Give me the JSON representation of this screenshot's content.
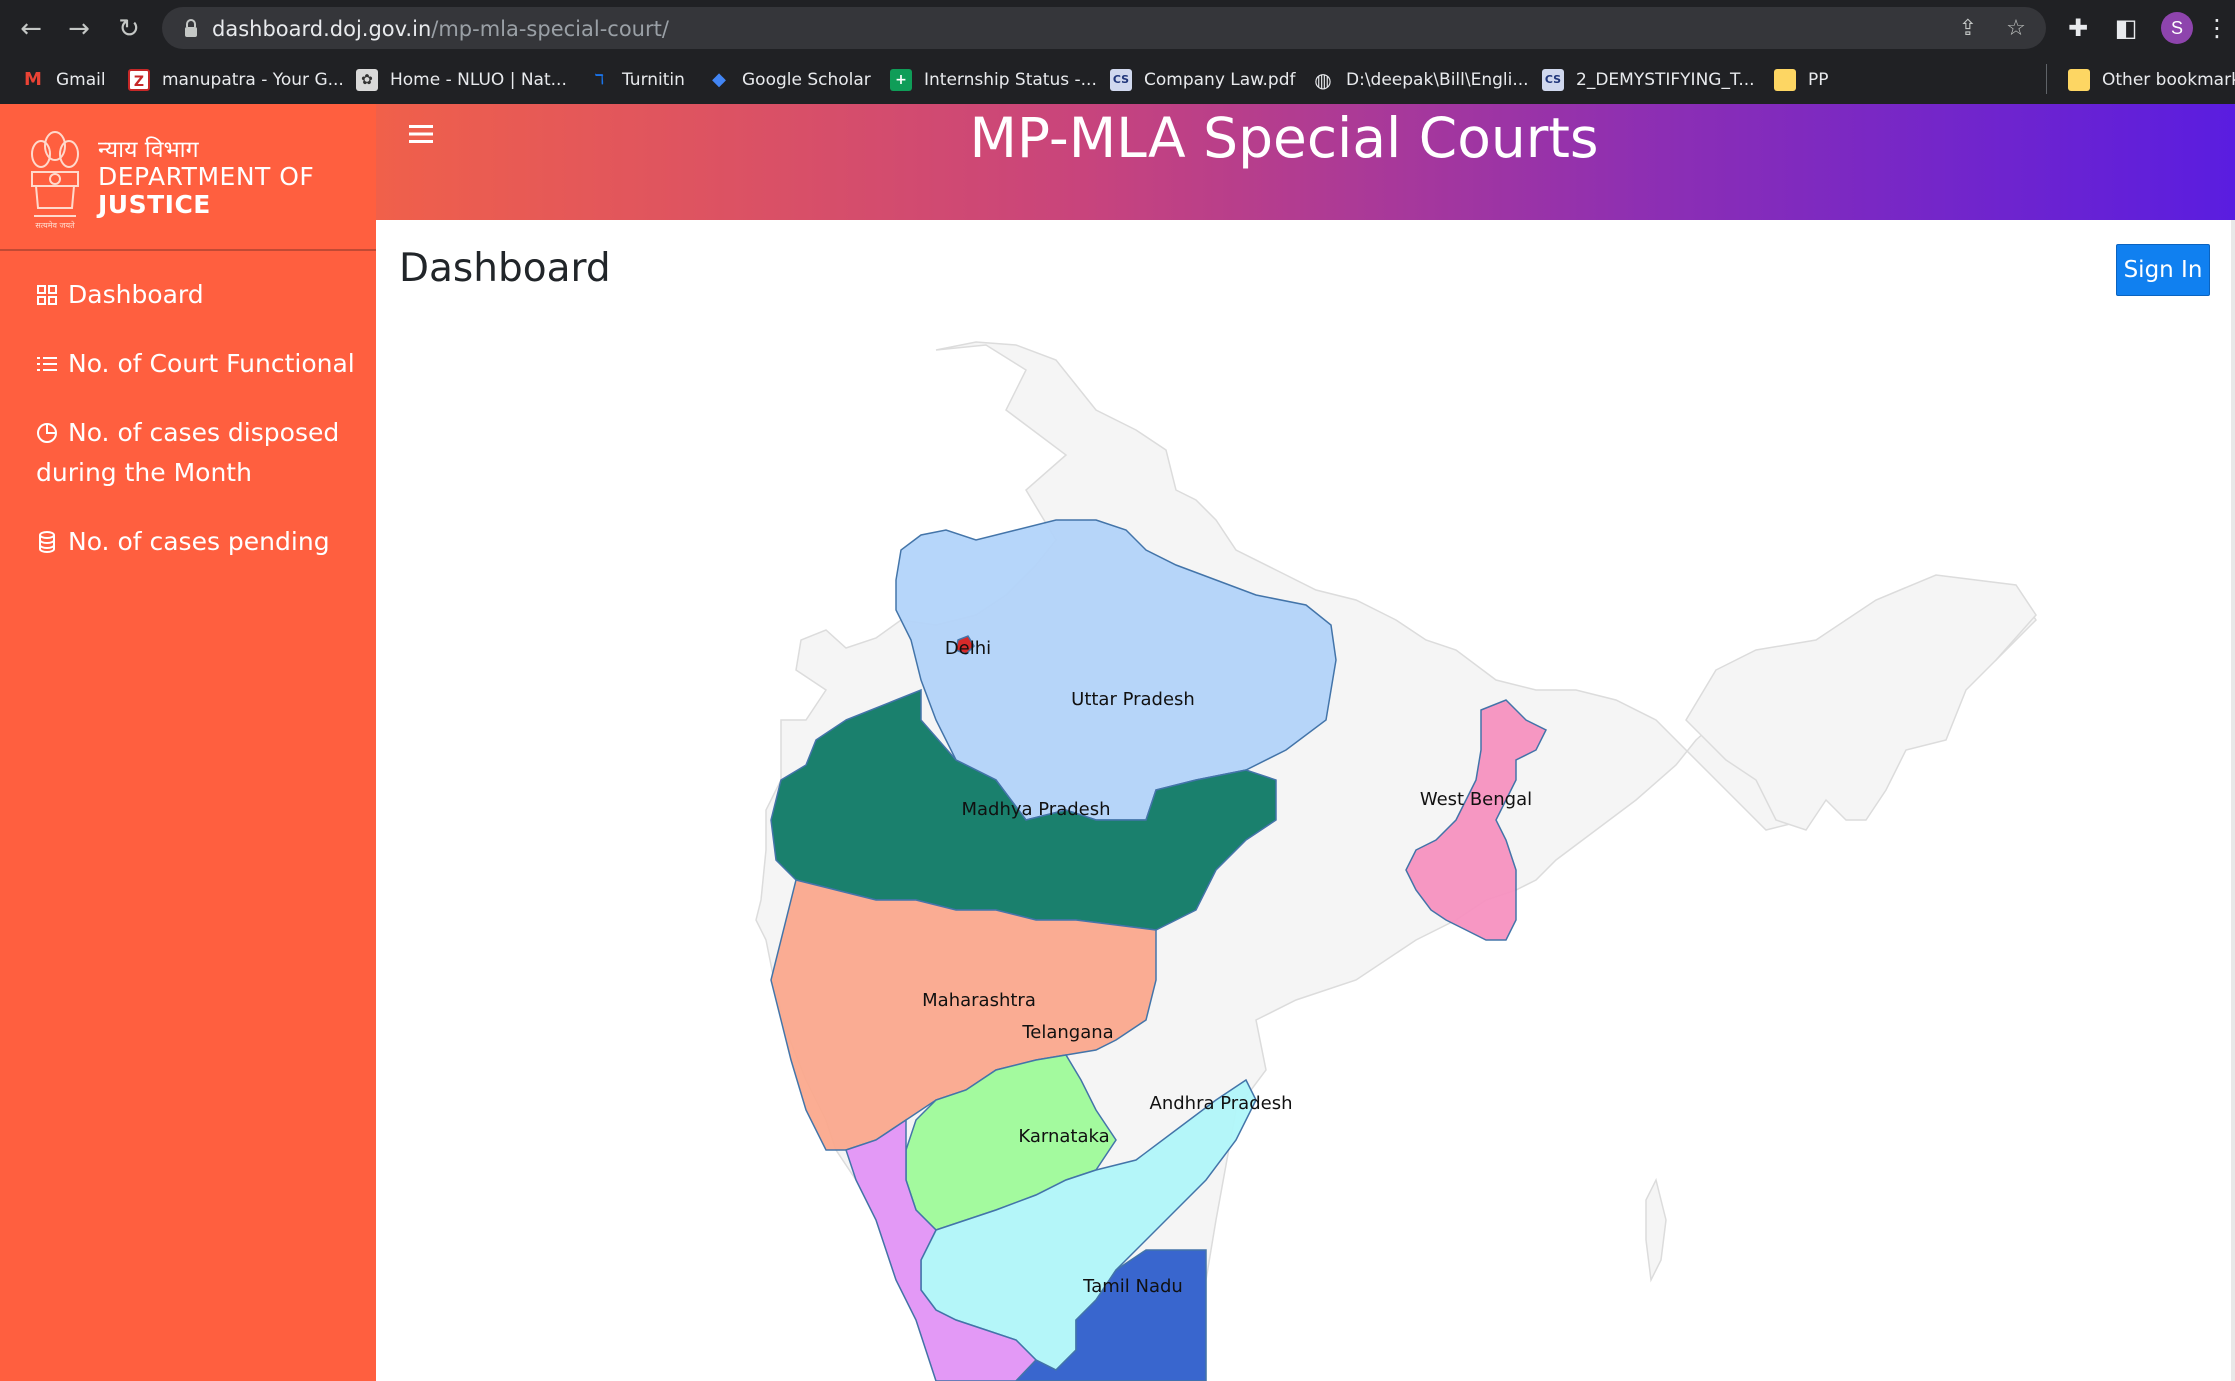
{
  "browser": {
    "url_host": "dashboard.doj.gov.in",
    "url_path": "/mp-mla-special-court/",
    "profile_initial": "S",
    "bookmarks": [
      {
        "label": "Gmail",
        "icon": "gmail-icon"
      },
      {
        "label": "manupatra - Your G...",
        "icon": "manupatra-icon"
      },
      {
        "label": "Home - NLUO | Nat...",
        "icon": "nluo-icon"
      },
      {
        "label": "Turnitin",
        "icon": "turnitin-icon"
      },
      {
        "label": "Google Scholar",
        "icon": "scholar-icon"
      },
      {
        "label": "Internship Status -...",
        "icon": "sheets-icon"
      },
      {
        "label": "Company Law.pdf",
        "icon": "pdf-icon"
      },
      {
        "label": "D:\\deepak\\Bill\\Engli...",
        "icon": "globe-icon"
      },
      {
        "label": "2_DEMYSTIFYING_T...",
        "icon": "pdf-icon"
      },
      {
        "label": "PP",
        "icon": "folder-icon"
      }
    ],
    "other_bookmarks": "Other bookmarks"
  },
  "brand": {
    "hindi": "न्याय विभाग",
    "line1": "DEPARTMENT OF",
    "line2": "JUSTICE"
  },
  "sidebar": {
    "items": [
      {
        "label": "Dashboard",
        "icon": "grid-icon"
      },
      {
        "label": "No. of Court Functional",
        "icon": "list-icon"
      },
      {
        "label_line1": "No. of cases disposed",
        "label_line2": "during the Month",
        "icon": "pie-chart-icon"
      },
      {
        "label": "No. of cases pending",
        "icon": "database-icon"
      }
    ]
  },
  "header": {
    "title": "MP-MLA Special Courts"
  },
  "main": {
    "page_title": "Dashboard",
    "signin_label": "Sign In"
  },
  "map": {
    "states": [
      {
        "name": "Delhi",
        "color": "#d62020"
      },
      {
        "name": "Uttar Pradesh",
        "color": "#b3d4fa"
      },
      {
        "name": "West Bengal",
        "color": "#f792c0"
      },
      {
        "name": "Madhya Pradesh",
        "color": "#0f7a66"
      },
      {
        "name": "Maharashtra",
        "color": "#fba98e"
      },
      {
        "name": "Telangana",
        "color": "#9ffb9a"
      },
      {
        "name": "Andhra Pradesh",
        "color": "#b1f7fa"
      },
      {
        "name": "Karnataka",
        "color": "#e395f7"
      },
      {
        "name": "Tamil Nadu",
        "color": "#2f5fcc"
      }
    ],
    "base_color": "#f5f5f5"
  }
}
